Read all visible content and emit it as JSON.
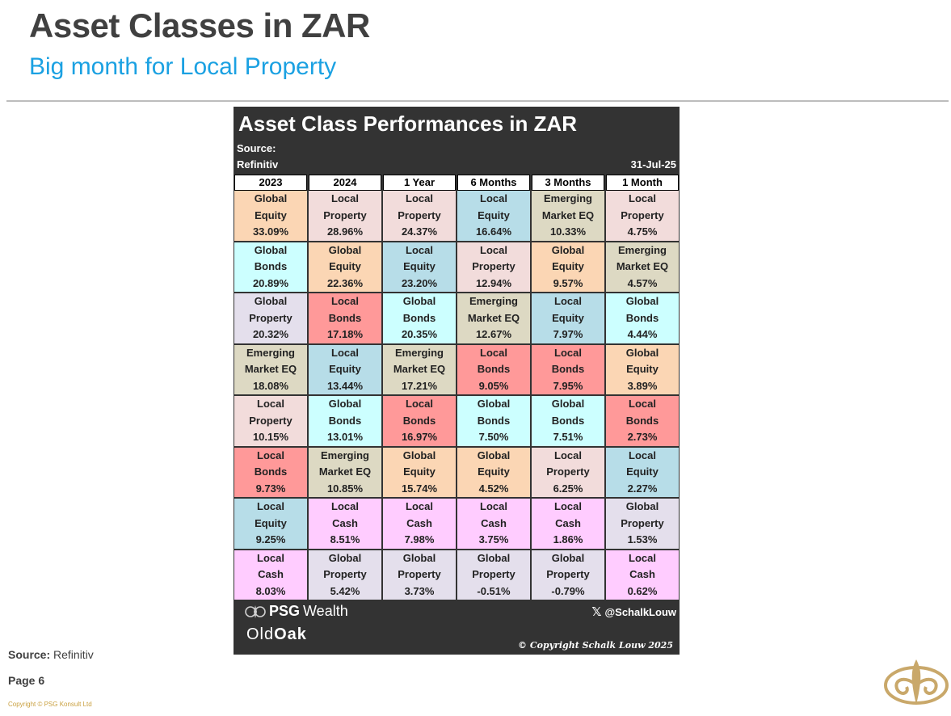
{
  "page": {
    "title": "Asset Classes in ZAR",
    "subtitle": "Big month for Local Property"
  },
  "card": {
    "title": "Asset Class Performances in ZAR",
    "source_label": "Source:",
    "source_value": "Refinitiv",
    "date": "31-Jul-25",
    "columns": [
      "2023",
      "2024",
      "1 Year",
      "6 Months",
      "3 Months",
      "1 Month"
    ]
  },
  "table": {
    "rows": [
      [
        {
          "l1": "Global",
          "l2": "Equity",
          "value": "33.09%",
          "cls": "global-equity"
        },
        {
          "l1": "Local",
          "l2": "Property",
          "value": "28.96%",
          "cls": "local-property"
        },
        {
          "l1": "Local",
          "l2": "Property",
          "value": "24.37%",
          "cls": "local-property"
        },
        {
          "l1": "Local",
          "l2": "Equity",
          "value": "16.64%",
          "cls": "local-equity"
        },
        {
          "l1": "Emerging",
          "l2": "Market EQ",
          "value": "10.33%",
          "cls": "emerging-market-eq"
        },
        {
          "l1": "Local",
          "l2": "Property",
          "value": "4.75%",
          "cls": "local-property"
        }
      ],
      [
        {
          "l1": "Global",
          "l2": "Bonds",
          "value": "20.89%",
          "cls": "global-bonds"
        },
        {
          "l1": "Global",
          "l2": "Equity",
          "value": "22.36%",
          "cls": "global-equity"
        },
        {
          "l1": "Local",
          "l2": "Equity",
          "value": "23.20%",
          "cls": "local-equity"
        },
        {
          "l1": "Local",
          "l2": "Property",
          "value": "12.94%",
          "cls": "local-property"
        },
        {
          "l1": "Global",
          "l2": "Equity",
          "value": "9.57%",
          "cls": "global-equity"
        },
        {
          "l1": "Emerging",
          "l2": "Market EQ",
          "value": "4.57%",
          "cls": "emerging-market-eq"
        }
      ],
      [
        {
          "l1": "Global",
          "l2": "Property",
          "value": "20.32%",
          "cls": "global-property"
        },
        {
          "l1": "Local",
          "l2": "Bonds",
          "value": "17.18%",
          "cls": "local-bonds"
        },
        {
          "l1": "Global",
          "l2": "Bonds",
          "value": "20.35%",
          "cls": "global-bonds"
        },
        {
          "l1": "Emerging",
          "l2": "Market EQ",
          "value": "12.67%",
          "cls": "emerging-market-eq"
        },
        {
          "l1": "Local",
          "l2": "Equity",
          "value": "7.97%",
          "cls": "local-equity"
        },
        {
          "l1": "Global",
          "l2": "Bonds",
          "value": "4.44%",
          "cls": "global-bonds"
        }
      ],
      [
        {
          "l1": "Emerging",
          "l2": "Market EQ",
          "value": "18.08%",
          "cls": "emerging-market-eq"
        },
        {
          "l1": "Local",
          "l2": "Equity",
          "value": "13.44%",
          "cls": "local-equity"
        },
        {
          "l1": "Emerging",
          "l2": "Market EQ",
          "value": "17.21%",
          "cls": "emerging-market-eq"
        },
        {
          "l1": "Local",
          "l2": "Bonds",
          "value": "9.05%",
          "cls": "local-bonds"
        },
        {
          "l1": "Local",
          "l2": "Bonds",
          "value": "7.95%",
          "cls": "local-bonds"
        },
        {
          "l1": "Global",
          "l2": "Equity",
          "value": "3.89%",
          "cls": "global-equity"
        }
      ],
      [
        {
          "l1": "Local",
          "l2": "Property",
          "value": "10.15%",
          "cls": "local-property"
        },
        {
          "l1": "Global",
          "l2": "Bonds",
          "value": "13.01%",
          "cls": "global-bonds"
        },
        {
          "l1": "Local",
          "l2": "Bonds",
          "value": "16.97%",
          "cls": "local-bonds"
        },
        {
          "l1": "Global",
          "l2": "Bonds",
          "value": "7.50%",
          "cls": "global-bonds"
        },
        {
          "l1": "Global",
          "l2": "Bonds",
          "value": "7.51%",
          "cls": "global-bonds"
        },
        {
          "l1": "Local",
          "l2": "Bonds",
          "value": "2.73%",
          "cls": "local-bonds"
        }
      ],
      [
        {
          "l1": "Local",
          "l2": "Bonds",
          "value": "9.73%",
          "cls": "local-bonds"
        },
        {
          "l1": "Emerging",
          "l2": "Market EQ",
          "value": "10.85%",
          "cls": "emerging-market-eq"
        },
        {
          "l1": "Global",
          "l2": "Equity",
          "value": "15.74%",
          "cls": "global-equity"
        },
        {
          "l1": "Global",
          "l2": "Equity",
          "value": "4.52%",
          "cls": "global-equity"
        },
        {
          "l1": "Local",
          "l2": "Property",
          "value": "6.25%",
          "cls": "local-property"
        },
        {
          "l1": "Local",
          "l2": "Equity",
          "value": "2.27%",
          "cls": "local-equity"
        }
      ],
      [
        {
          "l1": "Local",
          "l2": "Equity",
          "value": "9.25%",
          "cls": "local-equity"
        },
        {
          "l1": "Local",
          "l2": "Cash",
          "value": "8.51%",
          "cls": "local-cash"
        },
        {
          "l1": "Local",
          "l2": "Cash",
          "value": "7.98%",
          "cls": "local-cash"
        },
        {
          "l1": "Local",
          "l2": "Cash",
          "value": "3.75%",
          "cls": "local-cash"
        },
        {
          "l1": "Local",
          "l2": "Cash",
          "value": "1.86%",
          "cls": "local-cash"
        },
        {
          "l1": "Global",
          "l2": "Property",
          "value": "1.53%",
          "cls": "global-property"
        }
      ],
      [
        {
          "l1": "Local",
          "l2": "Cash",
          "value": "8.03%",
          "cls": "local-cash"
        },
        {
          "l1": "Global",
          "l2": "Property",
          "value": "5.42%",
          "cls": "global-property"
        },
        {
          "l1": "Global",
          "l2": "Property",
          "value": "3.73%",
          "cls": "global-property"
        },
        {
          "l1": "Global",
          "l2": "Property",
          "value": "-0.51%",
          "cls": "global-property"
        },
        {
          "l1": "Global",
          "l2": "Property",
          "value": "-0.79%",
          "cls": "global-property"
        },
        {
          "l1": "Local",
          "l2": "Cash",
          "value": "0.62%",
          "cls": "local-cash"
        }
      ]
    ]
  },
  "colors": {
    "global-equity": "#fbd6b4",
    "local-property": "#f2dcdb",
    "local-equity": "#b7dde8",
    "emerging-market-eq": "#ddd9c3",
    "global-bonds": "#ccffff",
    "global-property": "#e4dfec",
    "local-bonds": "#ff9999",
    "local-cash": "#ffccff",
    "subtitle": "#1ba1e2",
    "card_background": "#333333"
  },
  "footer": {
    "brand_psg": "PSG",
    "brand_wealth": "Wealth",
    "brand_old": "Old",
    "brand_oak": "Oak",
    "handle": "@SchalkLouw",
    "handle_icon": "x-icon",
    "copyright": "© Copyright Schalk Louw 2025"
  },
  "page_footer": {
    "source_label": "Source:",
    "source_value": "Refinitiv",
    "page": "Page 6",
    "copyright": "Copyright © PSG Konsult Ltd",
    "logo_icon": "fleur-de-lis-logo"
  }
}
